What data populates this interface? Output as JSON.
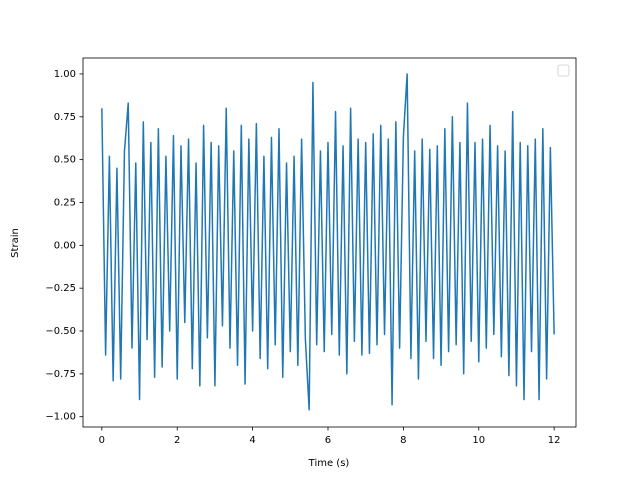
{
  "chart_data": {
    "type": "line",
    "xlabel": "Time (s)",
    "ylabel": "Strain",
    "x": [
      0.0,
      0.1,
      0.2,
      0.3,
      0.4,
      0.5,
      0.6,
      0.7,
      0.8,
      0.9,
      1.0,
      1.1,
      1.2,
      1.3,
      1.4,
      1.5,
      1.6,
      1.7,
      1.8,
      1.9,
      2.0,
      2.1,
      2.2,
      2.3,
      2.4,
      2.5,
      2.6,
      2.7,
      2.8,
      2.9,
      3.0,
      3.1,
      3.2,
      3.3,
      3.4,
      3.5,
      3.6,
      3.7,
      3.8,
      3.9,
      4.0,
      4.1,
      4.2,
      4.3,
      4.4,
      4.5,
      4.6,
      4.7,
      4.8,
      4.9,
      5.0,
      5.1,
      5.2,
      5.3,
      5.4,
      5.5,
      5.6,
      5.7,
      5.8,
      5.9,
      6.0,
      6.1,
      6.2,
      6.3,
      6.4,
      6.5,
      6.6,
      6.7,
      6.8,
      6.9,
      7.0,
      7.1,
      7.2,
      7.3,
      7.4,
      7.5,
      7.6,
      7.7,
      7.8,
      7.9,
      8.0,
      8.1,
      8.2,
      8.3,
      8.4,
      8.5,
      8.6,
      8.7,
      8.8,
      8.9,
      9.0,
      9.1,
      9.2,
      9.3,
      9.4,
      9.5,
      9.6,
      9.7,
      9.8,
      9.9,
      10.0,
      10.1,
      10.2,
      10.3,
      10.4,
      10.5,
      10.6,
      10.7,
      10.8,
      10.9,
      11.0,
      11.1,
      11.2,
      11.3,
      11.4,
      11.5,
      11.6,
      11.7,
      11.8,
      11.9,
      12.0
    ],
    "values": [
      0.8,
      -0.64,
      0.52,
      -0.79,
      0.45,
      -0.78,
      0.55,
      0.83,
      -0.6,
      0.48,
      -0.9,
      0.72,
      -0.55,
      0.6,
      -0.77,
      0.68,
      -0.71,
      0.52,
      -0.5,
      0.64,
      -0.78,
      0.58,
      -0.45,
      0.62,
      -0.72,
      0.48,
      -0.82,
      0.7,
      -0.54,
      0.6,
      -0.82,
      0.58,
      -0.47,
      0.8,
      -0.6,
      0.55,
      -0.7,
      0.7,
      -0.81,
      0.62,
      -0.5,
      0.71,
      -0.66,
      0.52,
      -0.72,
      0.63,
      -0.58,
      0.68,
      -0.77,
      0.48,
      -0.62,
      0.52,
      -0.7,
      0.62,
      -0.55,
      -0.96,
      0.95,
      -0.58,
      0.55,
      -0.62,
      0.6,
      -0.52,
      0.78,
      -0.64,
      0.58,
      -0.75,
      0.8,
      -0.56,
      0.62,
      -0.64,
      0.6,
      -0.63,
      0.65,
      -0.58,
      0.7,
      -0.52,
      0.62,
      -0.93,
      0.72,
      -0.6,
      0.63,
      1.0,
      -0.66,
      0.55,
      -0.78,
      0.62,
      -0.56,
      0.56,
      -0.66,
      0.58,
      -0.7,
      0.68,
      -0.62,
      0.75,
      -0.58,
      0.6,
      -0.75,
      0.83,
      -0.56,
      0.6,
      -0.68,
      0.62,
      -0.6,
      0.7,
      -0.52,
      0.58,
      -0.65,
      0.55,
      -0.76,
      0.78,
      -0.82,
      0.6,
      -0.9,
      0.58,
      -0.62,
      0.62,
      -0.9,
      0.68,
      -0.78,
      0.57,
      -0.52
    ],
    "color": "#1f77b4",
    "xlim": [
      -0.5,
      12.58
    ],
    "xticks": [
      0,
      2,
      4,
      6,
      8,
      10,
      12
    ],
    "ylim": [
      -1.06,
      1.093
    ],
    "yticks": [
      {
        "value": -1,
        "label": "−1.00"
      },
      {
        "value": -0.75,
        "label": "−0.75"
      },
      {
        "value": -0.5,
        "label": "−0.50"
      },
      {
        "value": -0.25,
        "label": "−0.25"
      },
      {
        "value": 0,
        "label": "0.00"
      },
      {
        "value": 0.25,
        "label": "0.25"
      },
      {
        "value": 0.5,
        "label": "0.50"
      },
      {
        "value": 0.75,
        "label": "0.75"
      },
      {
        "value": 1,
        "label": "1.00"
      }
    ],
    "legend": "upper right"
  }
}
